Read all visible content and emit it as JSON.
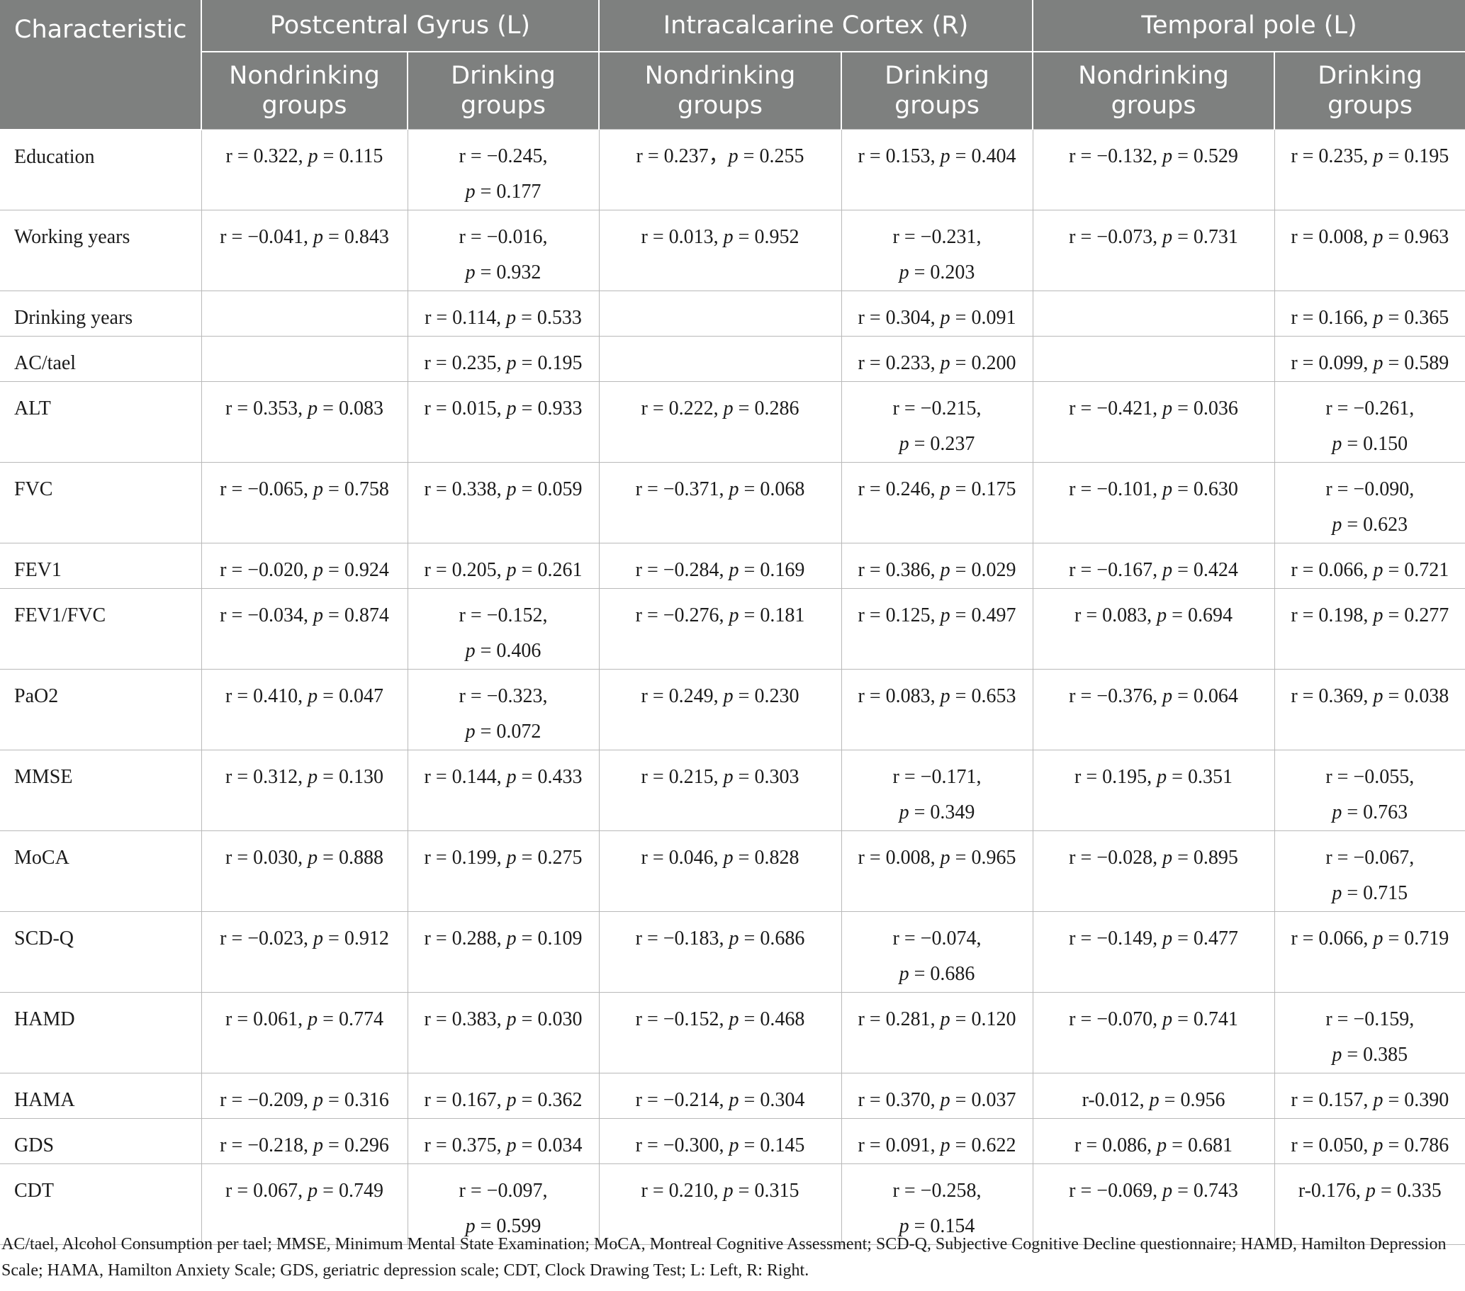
{
  "table": {
    "header": {
      "characteristic": "Characteristic",
      "regions": [
        "Postcentral Gyrus (L)",
        "Intracalcarine Cortex (R)",
        "Temporal pole (L)"
      ],
      "subgroups": [
        "Nondrinking groups",
        "Drinking groups"
      ]
    },
    "rows": [
      {
        "label": "Education",
        "cells": [
          [
            "r = 0.322, ",
            "p",
            " = 0.115"
          ],
          [
            "r = −0.245,",
            "p",
            " = 0.177"
          ],
          [
            "r = 0.237，",
            "p",
            " = 0.255"
          ],
          [
            "r = 0.153, ",
            "p",
            " = 0.404"
          ],
          [
            "r = −0.132, ",
            "p",
            " = 0.529"
          ],
          [
            "r = 0.235, ",
            "p",
            " = 0.195"
          ]
        ]
      },
      {
        "label": "Working years",
        "cells": [
          [
            "r = −0.041, ",
            "p",
            " = 0.843"
          ],
          [
            "r = −0.016,",
            "p",
            " = 0.932"
          ],
          [
            "r = 0.013, ",
            "p",
            " = 0.952"
          ],
          [
            "r = −0.231,",
            "p",
            " = 0.203"
          ],
          [
            "r = −0.073, ",
            "p",
            " = 0.731"
          ],
          [
            "r = 0.008, ",
            "p",
            " = 0.963"
          ]
        ]
      },
      {
        "label": "Drinking years",
        "cells": [
          [
            "",
            "",
            ""
          ],
          [
            "r = 0.114, ",
            "p",
            " = 0.533"
          ],
          [
            "",
            "",
            ""
          ],
          [
            "r = 0.304, ",
            "p",
            " = 0.091"
          ],
          [
            "",
            "",
            ""
          ],
          [
            "r = 0.166, ",
            "p",
            " = 0.365"
          ]
        ]
      },
      {
        "label": "AC/tael",
        "cells": [
          [
            "",
            "",
            ""
          ],
          [
            "r = 0.235, ",
            "p",
            " = 0.195"
          ],
          [
            "",
            "",
            ""
          ],
          [
            "r = 0.233, ",
            "p",
            " = 0.200"
          ],
          [
            "",
            "",
            ""
          ],
          [
            "r = 0.099, ",
            "p",
            " = 0.589"
          ]
        ]
      },
      {
        "label": "ALT",
        "cells": [
          [
            "r = 0.353, ",
            "p",
            " = 0.083"
          ],
          [
            "r = 0.015, ",
            "p",
            " = 0.933"
          ],
          [
            "r = 0.222, ",
            "p",
            " = 0.286"
          ],
          [
            "r = −0.215,",
            "p",
            " = 0.237"
          ],
          [
            "r = −0.421, ",
            "p",
            " = 0.036"
          ],
          [
            "r = −0.261,",
            "p",
            " = 0.150"
          ]
        ]
      },
      {
        "label": "FVC",
        "cells": [
          [
            "r = −0.065, ",
            "p",
            " = 0.758"
          ],
          [
            "r = 0.338, ",
            "p",
            " = 0.059"
          ],
          [
            "r = −0.371, ",
            "p",
            " = 0.068"
          ],
          [
            "r = 0.246, ",
            "p",
            " = 0.175"
          ],
          [
            "r = −0.101, ",
            "p",
            " = 0.630"
          ],
          [
            "r = −0.090,",
            "p",
            " = 0.623"
          ]
        ]
      },
      {
        "label": "FEV1",
        "cells": [
          [
            "r = −0.020, ",
            "p",
            " = 0.924"
          ],
          [
            "r = 0.205, ",
            "p",
            " = 0.261"
          ],
          [
            "r = −0.284, ",
            "p",
            " = 0.169"
          ],
          [
            "r = 0.386, ",
            "p",
            " = 0.029"
          ],
          [
            "r = −0.167, ",
            "p",
            " = 0.424"
          ],
          [
            "r = 0.066, ",
            "p",
            " = 0.721"
          ]
        ]
      },
      {
        "label": "FEV1/FVC",
        "cells": [
          [
            "r = −0.034, ",
            "p",
            " = 0.874"
          ],
          [
            "r = −0.152,",
            "p",
            " = 0.406"
          ],
          [
            "r = −0.276, ",
            "p",
            " = 0.181"
          ],
          [
            "r = 0.125, ",
            "p",
            " = 0.497"
          ],
          [
            "r = 0.083, ",
            "p",
            " = 0.694"
          ],
          [
            "r = 0.198, ",
            "p",
            " = 0.277"
          ]
        ]
      },
      {
        "label": "PaO2",
        "cells": [
          [
            "r = 0.410, ",
            "p",
            " = 0.047"
          ],
          [
            "r = −0.323,",
            "p",
            " = 0.072"
          ],
          [
            "r = 0.249, ",
            "p",
            " = 0.230"
          ],
          [
            "r = 0.083, ",
            "p",
            " = 0.653"
          ],
          [
            "r = −0.376, ",
            "p",
            " = 0.064"
          ],
          [
            "r = 0.369, ",
            "p",
            " = 0.038"
          ]
        ]
      },
      {
        "label": "MMSE",
        "cells": [
          [
            "r = 0.312, ",
            "p",
            " = 0.130"
          ],
          [
            "r = 0.144, ",
            "p",
            " = 0.433"
          ],
          [
            "r = 0.215, ",
            "p",
            " = 0.303"
          ],
          [
            "r = −0.171,",
            "p",
            " = 0.349"
          ],
          [
            "r = 0.195, ",
            "p",
            " = 0.351"
          ],
          [
            "r = −0.055,",
            "p",
            " = 0.763"
          ]
        ]
      },
      {
        "label": "MoCA",
        "cells": [
          [
            "r = 0.030, ",
            "p",
            " = 0.888"
          ],
          [
            "r = 0.199, ",
            "p",
            " = 0.275"
          ],
          [
            "r = 0.046, ",
            "p",
            " = 0.828"
          ],
          [
            "r = 0.008, ",
            "p",
            " = 0.965"
          ],
          [
            "r = −0.028, ",
            "p",
            " = 0.895"
          ],
          [
            "r = −0.067,",
            "p",
            " = 0.715"
          ]
        ]
      },
      {
        "label": "SCD-Q",
        "cells": [
          [
            "r = −0.023, ",
            "p",
            " = 0.912"
          ],
          [
            "r = 0.288, ",
            "p",
            " = 0.109"
          ],
          [
            "r = −0.183, ",
            "p",
            " = 0.686"
          ],
          [
            "r = −0.074,",
            "p",
            " = 0.686"
          ],
          [
            "r = −0.149, ",
            "p",
            " = 0.477"
          ],
          [
            "r = 0.066, ",
            "p",
            " = 0.719"
          ]
        ]
      },
      {
        "label": "HAMD",
        "cells": [
          [
            "r = 0.061, ",
            "p",
            " = 0.774"
          ],
          [
            "r = 0.383, ",
            "p",
            " = 0.030"
          ],
          [
            "r = −0.152, ",
            "p",
            " = 0.468"
          ],
          [
            "r = 0.281, ",
            "p",
            " = 0.120"
          ],
          [
            "r = −0.070, ",
            "p",
            " = 0.741"
          ],
          [
            "r = −0.159,",
            "p",
            " = 0.385"
          ]
        ]
      },
      {
        "label": "HAMA",
        "cells": [
          [
            "r = −0.209, ",
            "p",
            " = 0.316"
          ],
          [
            "r = 0.167, ",
            "p",
            " = 0.362"
          ],
          [
            "r = −0.214, ",
            "p",
            " = 0.304"
          ],
          [
            "r = 0.370, ",
            "p",
            " = 0.037"
          ],
          [
            "r-0.012, ",
            "p",
            " = 0.956"
          ],
          [
            "r = 0.157, ",
            "p",
            " = 0.390"
          ]
        ]
      },
      {
        "label": "GDS",
        "cells": [
          [
            "r = −0.218, ",
            "p",
            " = 0.296"
          ],
          [
            "r = 0.375, ",
            "p",
            " = 0.034"
          ],
          [
            "r = −0.300, ",
            "p",
            " = 0.145"
          ],
          [
            "r = 0.091, ",
            "p",
            " = 0.622"
          ],
          [
            "r = 0.086, ",
            "p",
            " = 0.681"
          ],
          [
            "r = 0.050, ",
            "p",
            " = 0.786"
          ]
        ]
      },
      {
        "label": "CDT",
        "cells": [
          [
            "r = 0.067, ",
            "p",
            " = 0.749"
          ],
          [
            "r = −0.097,",
            "p",
            " = 0.599"
          ],
          [
            "r = 0.210, ",
            "p",
            " = 0.315"
          ],
          [
            "r = −0.258,",
            "p",
            " = 0.154"
          ],
          [
            "r = −0.069, ",
            "p",
            " = 0.743"
          ],
          [
            "r-0.176, ",
            "p",
            " = 0.335"
          ]
        ]
      }
    ],
    "tall_rows": [
      "Education",
      "Working years",
      "ALT",
      "FVC",
      "FEV1/FVC",
      "PaO2",
      "MMSE",
      "MoCA",
      "SCD-Q",
      "HAMD",
      "CDT"
    ],
    "wrapped_cells": {
      "Education": [
        1
      ],
      "Working years": [
        1,
        3
      ],
      "ALT": [
        3,
        5
      ],
      "FVC": [
        5
      ],
      "FEV1/FVC": [
        1
      ],
      "PaO2": [
        1
      ],
      "MMSE": [
        3,
        5
      ],
      "MoCA": [
        5
      ],
      "SCD-Q": [
        3
      ],
      "HAMD": [
        5
      ],
      "CDT": [
        1,
        3
      ]
    }
  },
  "footnote": "AC/tael, Alcohol Consumption per tael; MMSE, Minimum Mental State Examination; MoCA, Montreal Cognitive Assessment; SCD-Q, Subjective Cognitive Decline questionnaire; HAMD, Hamilton Depression Scale; HAMA, Hamilton Anxiety Scale; GDS, geriatric depression scale; CDT, Clock Drawing Test; L: Left, R: Right.",
  "colors": {
    "header_bg": "#7e807f",
    "header_text": "#ffffff",
    "grid": "#b9b9b9",
    "body_text": "#1b1b1b"
  }
}
